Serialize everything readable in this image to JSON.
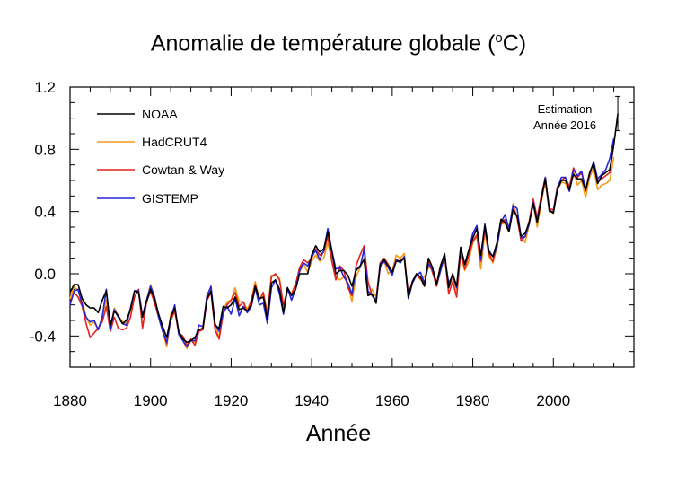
{
  "chart_data": {
    "type": "line",
    "title_main": "Anomalie de température globale (",
    "title_unit_sup": "o",
    "title_unit_end": "C)",
    "xlabel": "Année",
    "ylabel": "",
    "xlim": [
      1880,
      2020
    ],
    "ylim": [
      -0.6,
      1.2
    ],
    "xticks": [
      1880,
      1900,
      1920,
      1940,
      1960,
      1980,
      2000
    ],
    "xtick_labels": [
      "1880",
      "1900",
      "1920",
      "1940",
      "1960",
      "1980",
      "2000"
    ],
    "yticks": [
      1.2,
      0.8,
      0.4,
      0.0,
      -0.4
    ],
    "ytick_labels": [
      "1.2",
      "0.8",
      "0.4",
      "0.0",
      "-0.4"
    ],
    "legend_position": "top-left",
    "annotation": {
      "lines": [
        "Estimation",
        "Année 2016"
      ],
      "year": 2016,
      "value": 1.03,
      "error_low": 0.92,
      "error_high": 1.14
    },
    "years_start": 1880,
    "series": [
      {
        "name": "NOAA",
        "color": "#000000",
        "values": [
          -0.12,
          -0.07,
          -0.07,
          -0.16,
          -0.2,
          -0.22,
          -0.22,
          -0.25,
          -0.17,
          -0.11,
          -0.33,
          -0.24,
          -0.27,
          -0.32,
          -0.3,
          -0.23,
          -0.11,
          -0.12,
          -0.28,
          -0.18,
          -0.1,
          -0.16,
          -0.26,
          -0.34,
          -0.41,
          -0.28,
          -0.22,
          -0.37,
          -0.42,
          -0.44,
          -0.43,
          -0.41,
          -0.36,
          -0.35,
          -0.16,
          -0.11,
          -0.33,
          -0.35,
          -0.21,
          -0.22,
          -0.2,
          -0.15,
          -0.23,
          -0.22,
          -0.24,
          -0.2,
          -0.08,
          -0.16,
          -0.15,
          -0.29,
          -0.06,
          -0.04,
          -0.1,
          -0.25,
          -0.09,
          -0.14,
          -0.1,
          0.0,
          0.0,
          0.0,
          0.12,
          0.18,
          0.14,
          0.16,
          0.27,
          0.14,
          0.0,
          0.02,
          0.02,
          -0.01,
          -0.08,
          0.02,
          0.05,
          0.09,
          -0.14,
          -0.13,
          -0.19,
          0.06,
          0.09,
          0.05,
          0.01,
          0.08,
          0.08,
          0.1,
          -0.15,
          -0.05,
          0.0,
          -0.02,
          -0.08,
          0.1,
          0.04,
          -0.07,
          0.05,
          0.13,
          -0.09,
          0.0,
          -0.08,
          0.17,
          0.06,
          0.15,
          0.23,
          0.29,
          0.12,
          0.31,
          0.14,
          0.11,
          0.2,
          0.35,
          0.33,
          0.27,
          0.41,
          0.37,
          0.24,
          0.26,
          0.33,
          0.45,
          0.33,
          0.48,
          0.61,
          0.41,
          0.39,
          0.54,
          0.6,
          0.6,
          0.54,
          0.64,
          0.61,
          0.61,
          0.54,
          0.65,
          0.71,
          0.58,
          0.63,
          0.65,
          0.67,
          0.83,
          1.03
        ]
      },
      {
        "name": "HadCRUT4",
        "color": "#f29b18",
        "values": [
          -0.16,
          -0.08,
          -0.11,
          -0.17,
          -0.28,
          -0.33,
          -0.31,
          -0.36,
          -0.27,
          -0.17,
          -0.35,
          -0.22,
          -0.27,
          -0.31,
          -0.32,
          -0.23,
          -0.11,
          -0.11,
          -0.27,
          -0.17,
          -0.07,
          -0.15,
          -0.28,
          -0.37,
          -0.47,
          -0.26,
          -0.22,
          -0.39,
          -0.43,
          -0.48,
          -0.43,
          -0.44,
          -0.36,
          -0.35,
          -0.15,
          -0.1,
          -0.32,
          -0.41,
          -0.24,
          -0.18,
          -0.17,
          -0.09,
          -0.18,
          -0.18,
          -0.23,
          -0.17,
          -0.05,
          -0.16,
          -0.13,
          -0.25,
          -0.01,
          -0.01,
          -0.03,
          -0.21,
          -0.11,
          -0.13,
          -0.06,
          0.01,
          0.06,
          0.01,
          0.08,
          0.12,
          0.08,
          0.1,
          0.2,
          0.08,
          -0.02,
          -0.04,
          -0.02,
          -0.06,
          -0.18,
          -0.02,
          0.04,
          0.1,
          -0.14,
          -0.1,
          -0.15,
          0.05,
          0.08,
          0.0,
          0.02,
          0.12,
          0.1,
          0.13,
          -0.14,
          -0.05,
          0.0,
          -0.04,
          -0.02,
          0.04,
          0.03,
          -0.06,
          0.06,
          0.1,
          -0.09,
          -0.02,
          -0.11,
          0.12,
          0.02,
          0.08,
          0.2,
          0.24,
          0.03,
          0.27,
          0.11,
          0.07,
          0.17,
          0.32,
          0.32,
          0.27,
          0.45,
          0.36,
          0.24,
          0.2,
          0.32,
          0.45,
          0.3,
          0.46,
          0.59,
          0.4,
          0.39,
          0.54,
          0.59,
          0.58,
          0.53,
          0.65,
          0.57,
          0.6,
          0.49,
          0.62,
          0.68,
          0.54,
          0.57,
          0.58,
          0.6,
          0.75
        ]
      },
      {
        "name": "Cowtan & Way",
        "color": "#e3221f",
        "values": [
          -0.19,
          -0.12,
          -0.15,
          -0.21,
          -0.32,
          -0.41,
          -0.38,
          -0.35,
          -0.31,
          -0.21,
          -0.37,
          -0.28,
          -0.35,
          -0.36,
          -0.35,
          -0.28,
          -0.15,
          -0.1,
          -0.35,
          -0.18,
          -0.11,
          -0.19,
          -0.28,
          -0.37,
          -0.45,
          -0.3,
          -0.24,
          -0.38,
          -0.4,
          -0.46,
          -0.42,
          -0.46,
          -0.37,
          -0.36,
          -0.17,
          -0.12,
          -0.36,
          -0.42,
          -0.26,
          -0.2,
          -0.17,
          -0.12,
          -0.21,
          -0.18,
          -0.25,
          -0.17,
          -0.07,
          -0.17,
          -0.12,
          -0.26,
          -0.02,
          0.0,
          -0.04,
          -0.2,
          -0.1,
          -0.13,
          -0.07,
          0.04,
          0.09,
          0.07,
          0.1,
          0.16,
          0.12,
          0.14,
          0.24,
          0.08,
          -0.04,
          0.05,
          0.02,
          -0.09,
          -0.14,
          0.05,
          0.12,
          0.18,
          -0.05,
          -0.14,
          -0.17,
          0.07,
          0.1,
          0.06,
          0.01,
          0.09,
          0.08,
          0.11,
          -0.13,
          -0.05,
          -0.01,
          -0.03,
          -0.08,
          0.08,
          0.01,
          -0.08,
          0.02,
          0.12,
          -0.13,
          -0.05,
          -0.15,
          0.14,
          0.03,
          0.12,
          0.21,
          0.25,
          0.08,
          0.29,
          0.13,
          0.08,
          0.19,
          0.32,
          0.35,
          0.28,
          0.43,
          0.36,
          0.21,
          0.24,
          0.34,
          0.48,
          0.36,
          0.5,
          0.62,
          0.42,
          0.41,
          0.56,
          0.6,
          0.62,
          0.56,
          0.68,
          0.62,
          0.65,
          0.53,
          0.65,
          0.71,
          0.59,
          0.61,
          0.63,
          0.65,
          0.84
        ]
      },
      {
        "name": "GISTEMP",
        "color": "#2626d9",
        "values": [
          -0.2,
          -0.11,
          -0.1,
          -0.2,
          -0.28,
          -0.31,
          -0.3,
          -0.36,
          -0.28,
          -0.1,
          -0.36,
          -0.23,
          -0.28,
          -0.32,
          -0.33,
          -0.22,
          -0.11,
          -0.11,
          -0.27,
          -0.17,
          -0.08,
          -0.15,
          -0.28,
          -0.37,
          -0.44,
          -0.29,
          -0.2,
          -0.39,
          -0.43,
          -0.47,
          -0.43,
          -0.43,
          -0.33,
          -0.34,
          -0.14,
          -0.08,
          -0.32,
          -0.37,
          -0.25,
          -0.21,
          -0.26,
          -0.16,
          -0.27,
          -0.21,
          -0.25,
          -0.21,
          -0.09,
          -0.2,
          -0.19,
          -0.32,
          -0.09,
          -0.04,
          -0.13,
          -0.26,
          -0.09,
          -0.17,
          -0.1,
          0.02,
          0.07,
          0.05,
          0.11,
          0.15,
          0.09,
          0.15,
          0.29,
          0.15,
          0.03,
          0.04,
          -0.02,
          -0.06,
          -0.13,
          0.03,
          0.04,
          0.16,
          -0.11,
          -0.14,
          -0.17,
          0.04,
          0.08,
          0.04,
          -0.01,
          0.09,
          0.07,
          0.11,
          -0.16,
          -0.06,
          -0.01,
          0.01,
          -0.06,
          0.06,
          0.03,
          -0.07,
          0.02,
          0.11,
          -0.06,
          -0.01,
          -0.09,
          0.17,
          0.06,
          0.15,
          0.26,
          0.31,
          0.09,
          0.32,
          0.15,
          0.11,
          0.17,
          0.33,
          0.38,
          0.29,
          0.44,
          0.42,
          0.23,
          0.24,
          0.32,
          0.46,
          0.34,
          0.47,
          0.62,
          0.4,
          0.4,
          0.55,
          0.62,
          0.62,
          0.53,
          0.67,
          0.63,
          0.66,
          0.54,
          0.64,
          0.72,
          0.61,
          0.64,
          0.67,
          0.74,
          0.87
        ]
      }
    ]
  }
}
